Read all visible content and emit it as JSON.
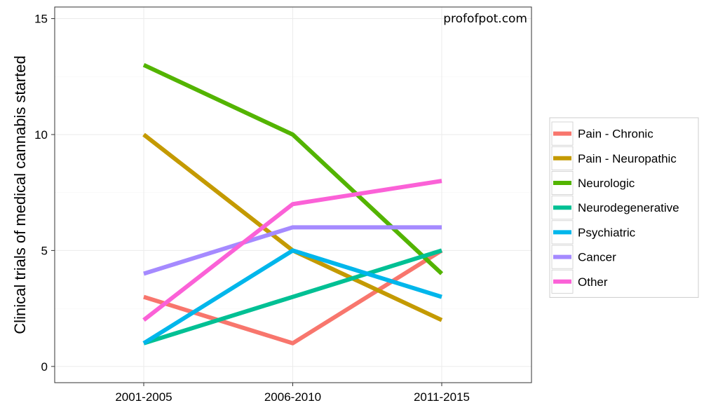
{
  "chart_data": {
    "type": "line",
    "categories": [
      "2001-2005",
      "2006-2010",
      "2011-2015"
    ],
    "ylabel": "Clinical trials of medical cannabis started",
    "xlabel": "",
    "ylim": [
      -0.7,
      15.5
    ],
    "yticks": [
      0,
      5,
      10,
      15
    ],
    "grid": true,
    "legend_position": "right",
    "annotation": "profofpot.com",
    "series": [
      {
        "name": "Pain - Chronic",
        "color": "#F8766D",
        "values": [
          3,
          1,
          5
        ]
      },
      {
        "name": "Pain - Neuropathic",
        "color": "#C49A00",
        "values": [
          10,
          5,
          2
        ]
      },
      {
        "name": "Neurologic",
        "color": "#53B400",
        "values": [
          13,
          10,
          4
        ]
      },
      {
        "name": "Neurodegenerative",
        "color": "#00C094",
        "values": [
          1,
          3,
          5
        ]
      },
      {
        "name": "Psychiatric",
        "color": "#00B6EB",
        "values": [
          1,
          5,
          3
        ]
      },
      {
        "name": "Cancer",
        "color": "#A58AFF",
        "values": [
          4,
          6,
          6
        ]
      },
      {
        "name": "Other",
        "color": "#FB61D7",
        "values": [
          2,
          7,
          8
        ]
      }
    ]
  }
}
